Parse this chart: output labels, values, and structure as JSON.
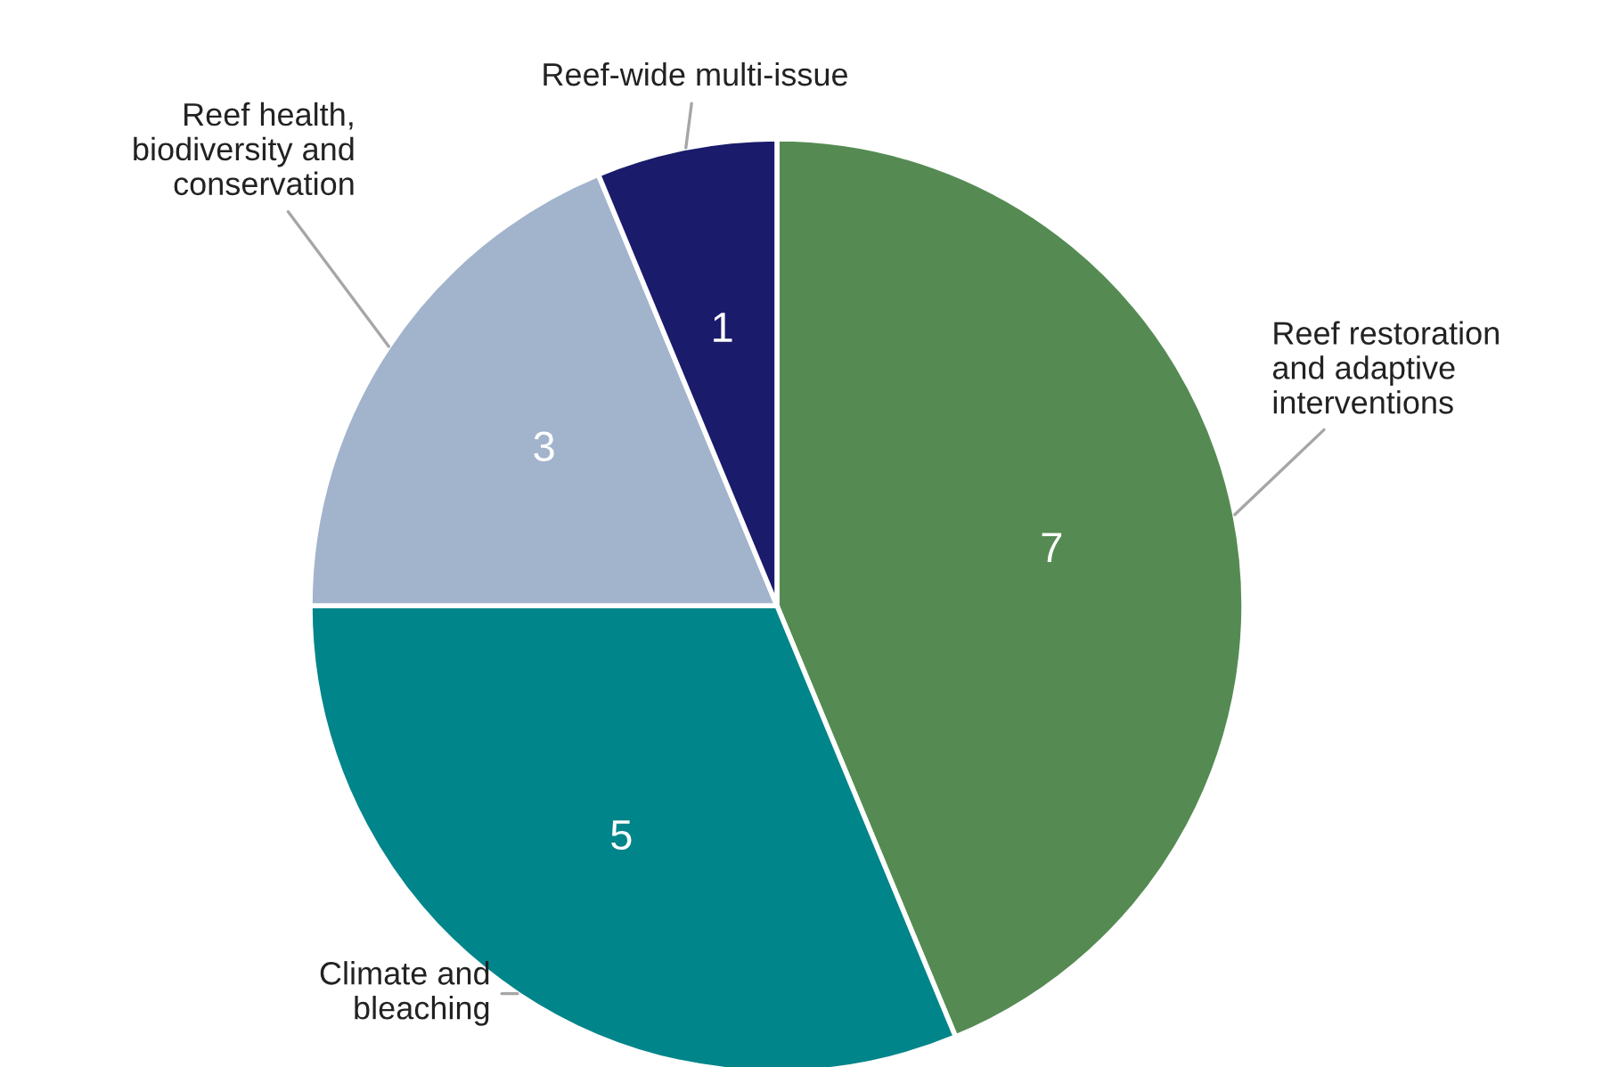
{
  "chart_data": {
    "type": "pie",
    "categories": [
      "Reef restoration\nand adaptive\ninterventions",
      "Climate and\nbleaching",
      "Reef health,\nbiodiversity and\nconservation",
      "Reef-wide multi-issue"
    ],
    "values": [
      7,
      5,
      3,
      1
    ],
    "colors": [
      "#558b53",
      "#00858a",
      "#a2b3cc",
      "#1a1b6b"
    ],
    "data_labels": true,
    "legend": false
  }
}
